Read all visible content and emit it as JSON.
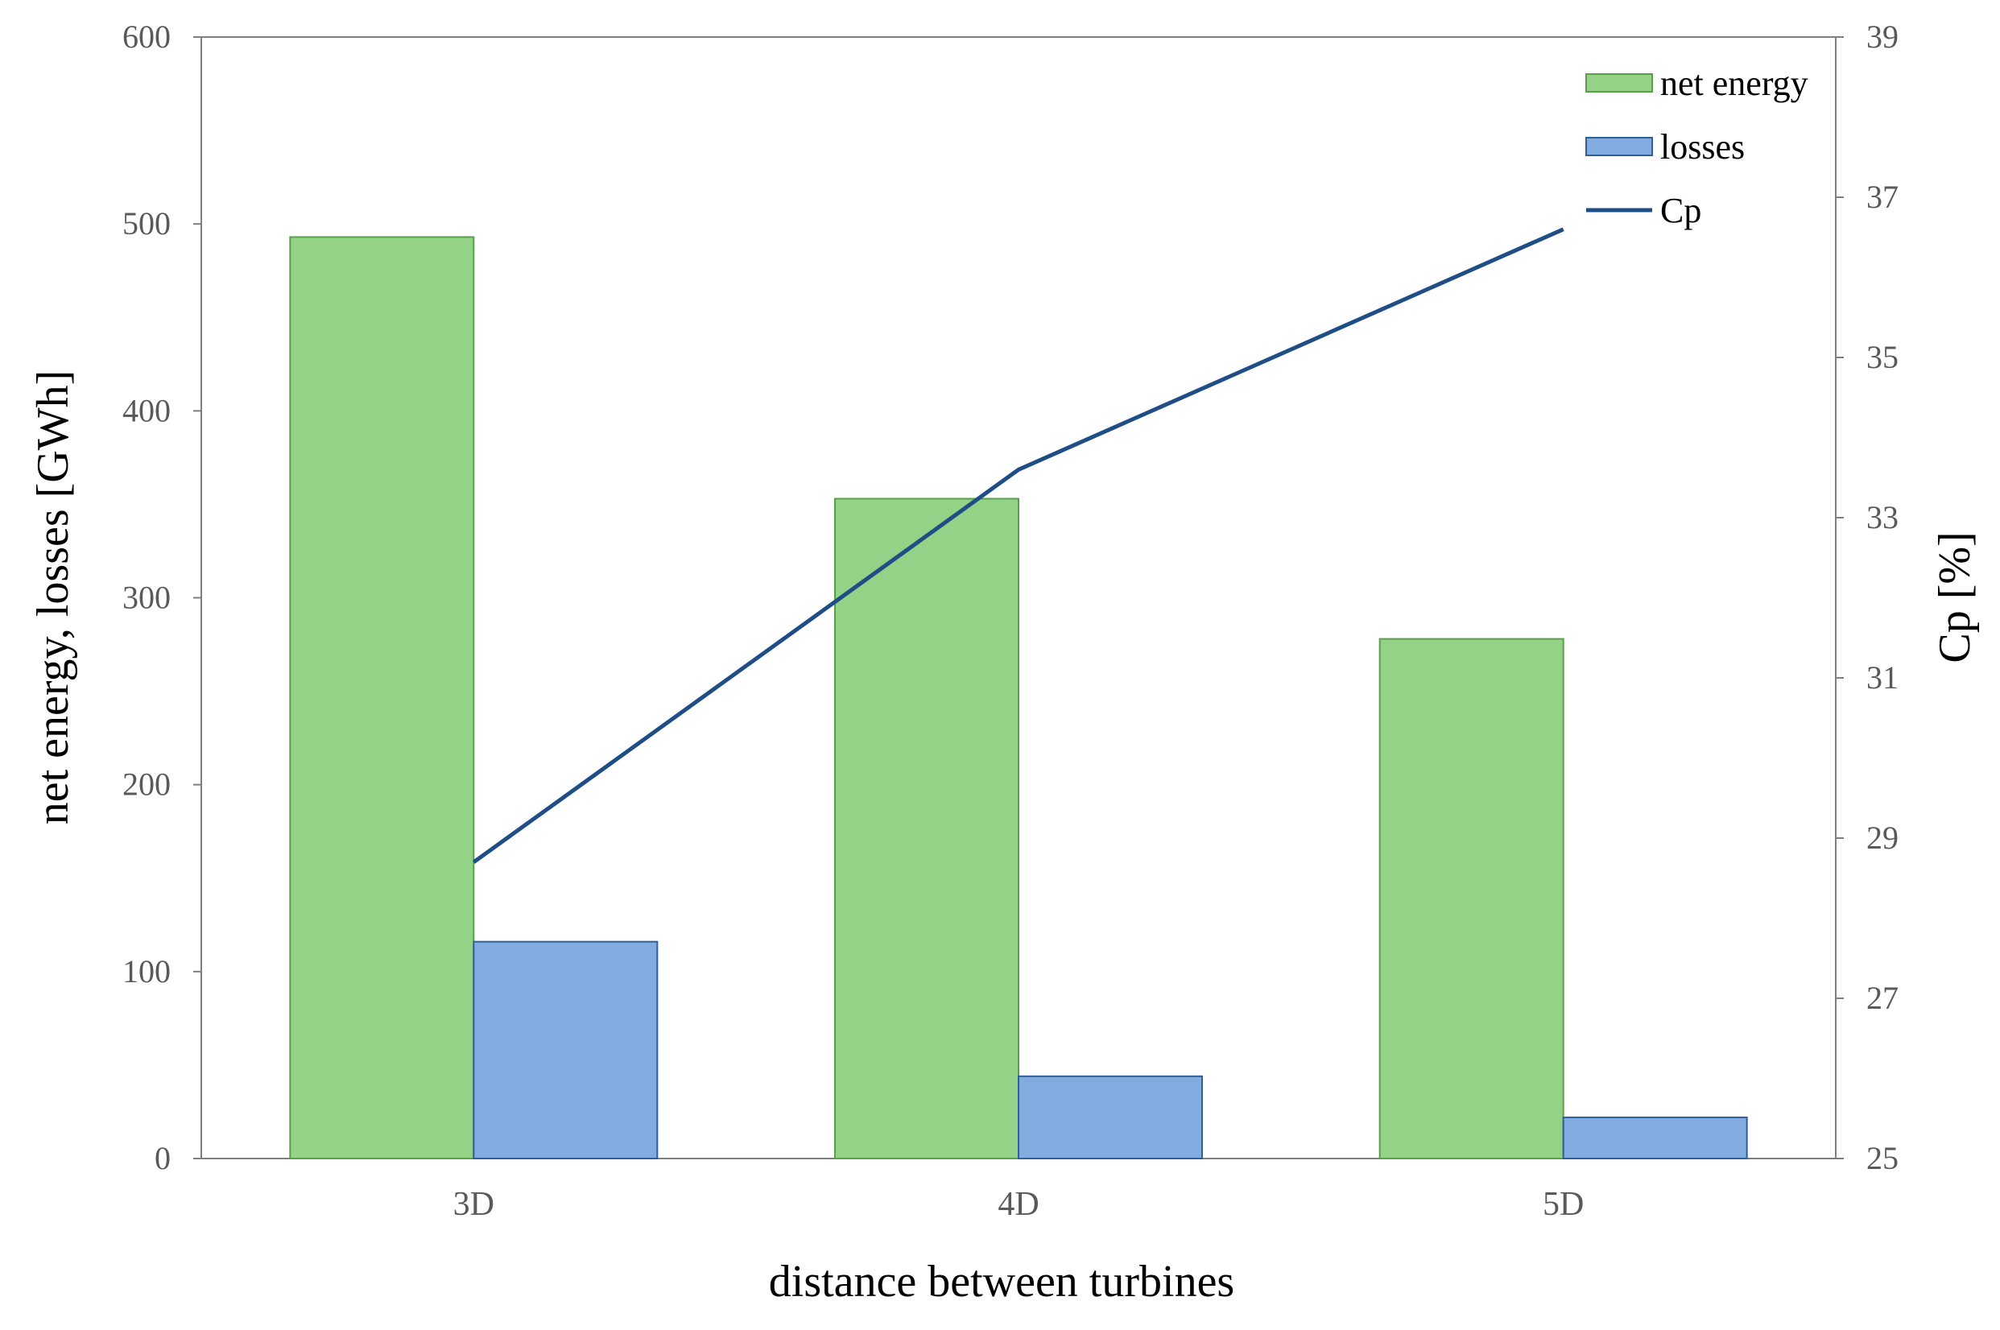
{
  "chart_data": {
    "type": "bar",
    "categories": [
      "3D",
      "4D",
      "5D"
    ],
    "series": [
      {
        "name": "net energy",
        "kind": "bar",
        "axis": "left",
        "values": [
          493,
          353,
          278
        ],
        "color": "#93d287",
        "stroke": "#5aa04a"
      },
      {
        "name": "losses",
        "kind": "bar",
        "axis": "left",
        "values": [
          116,
          44,
          22
        ],
        "color": "#82ace0",
        "stroke": "#2e5f98"
      },
      {
        "name": "Cp",
        "kind": "line",
        "axis": "right",
        "values": [
          28.7,
          33.6,
          36.6
        ],
        "color": "#1f4e86"
      }
    ],
    "xlabel": "distance between turbines",
    "ylabel": "net energy, losses [GWh]",
    "y2label": "Cp [%]",
    "ylim": [
      0,
      600
    ],
    "yticks": [
      "0",
      "100",
      "200",
      "300",
      "400",
      "500",
      "600"
    ],
    "y2lim": [
      25,
      39
    ],
    "y2ticks": [
      "25",
      "27",
      "29",
      "31",
      "33",
      "35",
      "37",
      "39"
    ],
    "grid": false,
    "legend_position": "top-right"
  }
}
